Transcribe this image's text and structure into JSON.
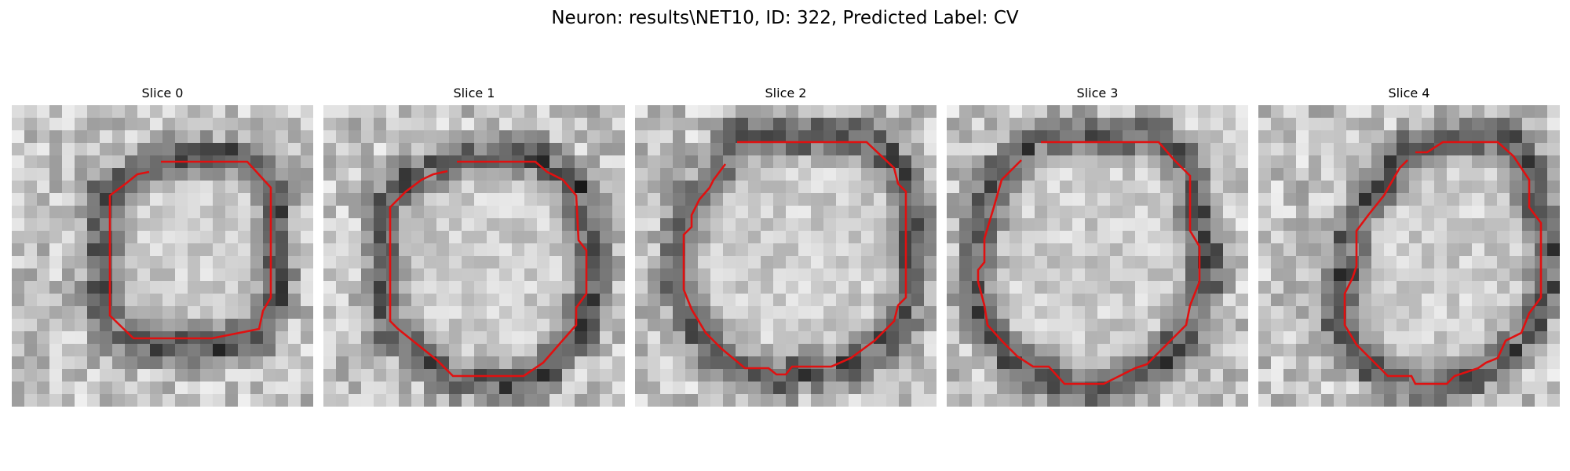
{
  "figure": {
    "title": "Neuron: results\\NET10, ID: 322, Predicted Label: CV"
  },
  "overlay": {
    "contour_color": "#e01010",
    "image_colormap": "gray"
  },
  "panels": [
    {
      "title": "Slice 0"
    },
    {
      "title": "Slice 1"
    },
    {
      "title": "Slice 2"
    },
    {
      "title": "Slice 3"
    },
    {
      "title": "Slice 4"
    }
  ]
}
